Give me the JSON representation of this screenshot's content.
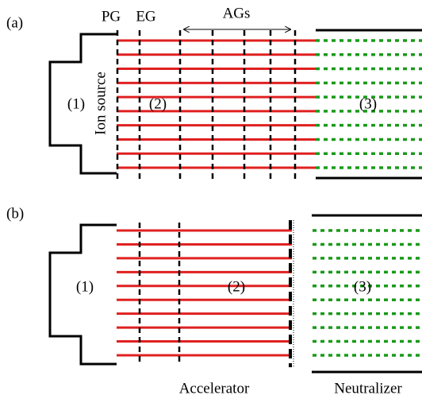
{
  "panel_a": {
    "label": "(a)",
    "grid_labels": [
      "PG",
      "EG",
      "AGs"
    ],
    "region_1": "(1)",
    "ion_source": "Ion source",
    "region_2": "(2)",
    "region_3": "(3)"
  },
  "panel_b": {
    "label": "(b)",
    "region_1": "(1)",
    "region_2": "(2)",
    "region_3": "(3)"
  },
  "footer": {
    "accelerator": "Accelerator",
    "neutralizer": "Neutralizer"
  }
}
